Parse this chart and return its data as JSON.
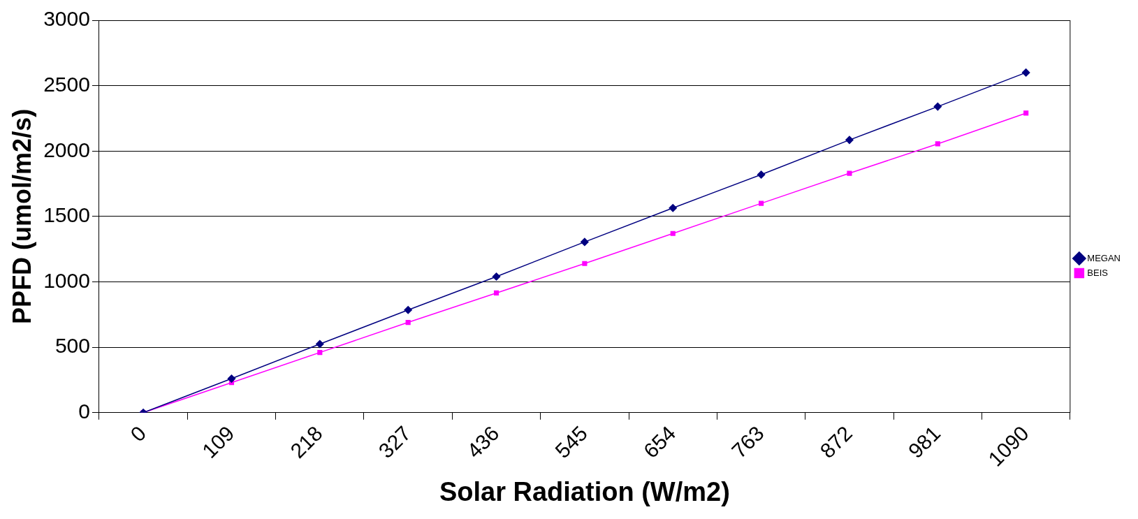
{
  "chart_data": {
    "type": "line",
    "xlabel": "Solar Radiation (W/m2)",
    "ylabel": "PPFD (umol/m2/s)",
    "categories": [
      "0",
      "109",
      "218",
      "327",
      "436",
      "545",
      "654",
      "763",
      "872",
      "981",
      "1090"
    ],
    "series": [
      {
        "name": "MEGAN",
        "color": "#000080",
        "marker": "diamond",
        "values": [
          0,
          260,
          525,
          785,
          1040,
          1305,
          1565,
          1820,
          2085,
          2340,
          2600
        ]
      },
      {
        "name": "BEIS",
        "color": "#ff00ff",
        "marker": "square",
        "values": [
          0,
          230,
          460,
          690,
          915,
          1140,
          1370,
          1600,
          1830,
          2055,
          2290
        ]
      }
    ],
    "ylim": [
      0,
      3000
    ],
    "yticks": [
      0,
      500,
      1000,
      1500,
      2000,
      2500,
      3000
    ],
    "grid": "y",
    "legend": "right",
    "line_style": "solid"
  }
}
